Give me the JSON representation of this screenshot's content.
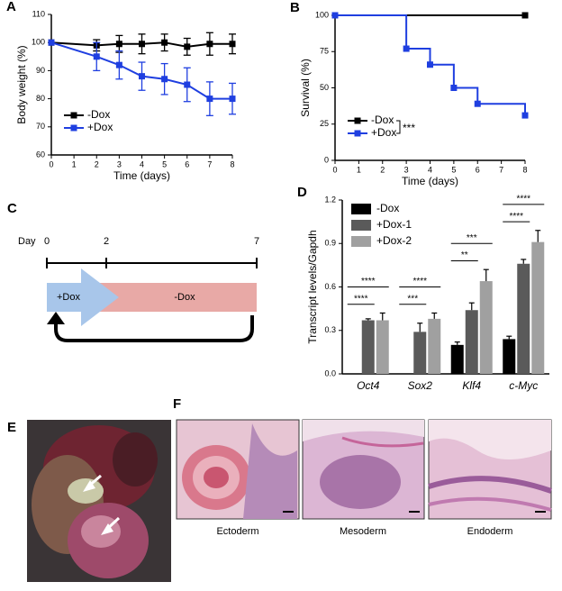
{
  "chart_data": [
    {
      "panel": "A",
      "type": "line",
      "xlabel": "Time (days)",
      "ylabel": "Body weight (%)",
      "xlim": [
        0,
        8
      ],
      "xticks": [
        0,
        1,
        2,
        3,
        4,
        5,
        6,
        7,
        8
      ],
      "ylim": [
        60,
        110
      ],
      "yticks": [
        60,
        70,
        80,
        90,
        100,
        110
      ],
      "legend": "lower left",
      "series": [
        {
          "name": "-Dox",
          "color": "#000000",
          "x": [
            0,
            2,
            3,
            4,
            5,
            6,
            7,
            8
          ],
          "values": [
            100,
            99,
            99.5,
            99.5,
            100,
            98.5,
            99.5,
            99.5
          ],
          "errors": [
            0,
            2,
            3,
            3.5,
            3,
            3,
            4,
            3.5
          ]
        },
        {
          "name": "+Dox",
          "color": "#1f3fe0",
          "x": [
            0,
            2,
            3,
            4,
            5,
            6,
            7,
            8
          ],
          "values": [
            100,
            95,
            92,
            88,
            87,
            85,
            80,
            80
          ],
          "errors": [
            0,
            5,
            5,
            5,
            5.5,
            6,
            6,
            5.5
          ]
        }
      ]
    },
    {
      "panel": "B",
      "type": "line",
      "step": true,
      "xlabel": "Time (days)",
      "ylabel": "Survival (%)",
      "xlim": [
        0,
        8
      ],
      "xticks": [
        0,
        1,
        2,
        3,
        4,
        5,
        6,
        7,
        8
      ],
      "ylim": [
        0,
        100
      ],
      "yticks": [
        0,
        25,
        50,
        75,
        100
      ],
      "legend": "lower left",
      "annotation": "***",
      "series": [
        {
          "name": "-Dox",
          "color": "#000000",
          "x": [
            0,
            8
          ],
          "values": [
            100,
            100
          ]
        },
        {
          "name": "+Dox",
          "color": "#1f3fe0",
          "x": [
            0,
            3,
            4,
            5,
            6,
            8
          ],
          "values": [
            100,
            77,
            66,
            50,
            39,
            31
          ]
        }
      ]
    },
    {
      "panel": "D",
      "type": "bar",
      "ylabel": "Transcript levels/Gapdh",
      "categories": [
        "Oct4",
        "Sox2",
        "Klf4",
        "c-Myc"
      ],
      "ylim": [
        0,
        1.2
      ],
      "yticks": [
        {
          "value": 0,
          "label": "0.0"
        },
        0.3,
        0.6,
        0.9,
        1.2
      ],
      "legend": "upper left",
      "series": [
        {
          "name": "-Dox",
          "color": "#000000",
          "values": [
            0,
            0,
            0.2,
            0.24
          ],
          "errors": [
            0,
            0,
            0.02,
            0.02
          ]
        },
        {
          "name": "+Dox-1",
          "color": "#5a5a5a",
          "values": [
            0.37,
            0.29,
            0.44,
            0.76
          ],
          "errors": [
            0.01,
            0.06,
            0.05,
            0.03
          ]
        },
        {
          "name": "+Dox-2",
          "color": "#a0a0a0",
          "values": [
            0.37,
            0.38,
            0.64,
            0.91
          ],
          "errors": [
            0.05,
            0.04,
            0.08,
            0.08
          ]
        }
      ],
      "significance": [
        [
          "****",
          "****"
        ],
        [
          "***",
          "****"
        ],
        [
          "**",
          "***"
        ],
        [
          "****",
          "****"
        ]
      ]
    }
  ],
  "scheme": {
    "panel": "C",
    "day_label": "Day",
    "days": [
      "0",
      "2",
      "7"
    ],
    "phases": [
      "+Dox",
      "-Dox"
    ]
  },
  "tumor_photo": {
    "panel": "E"
  },
  "histology": {
    "panel": "F",
    "images": [
      "Ectoderm",
      "Mesoderm",
      "Endoderm"
    ]
  }
}
